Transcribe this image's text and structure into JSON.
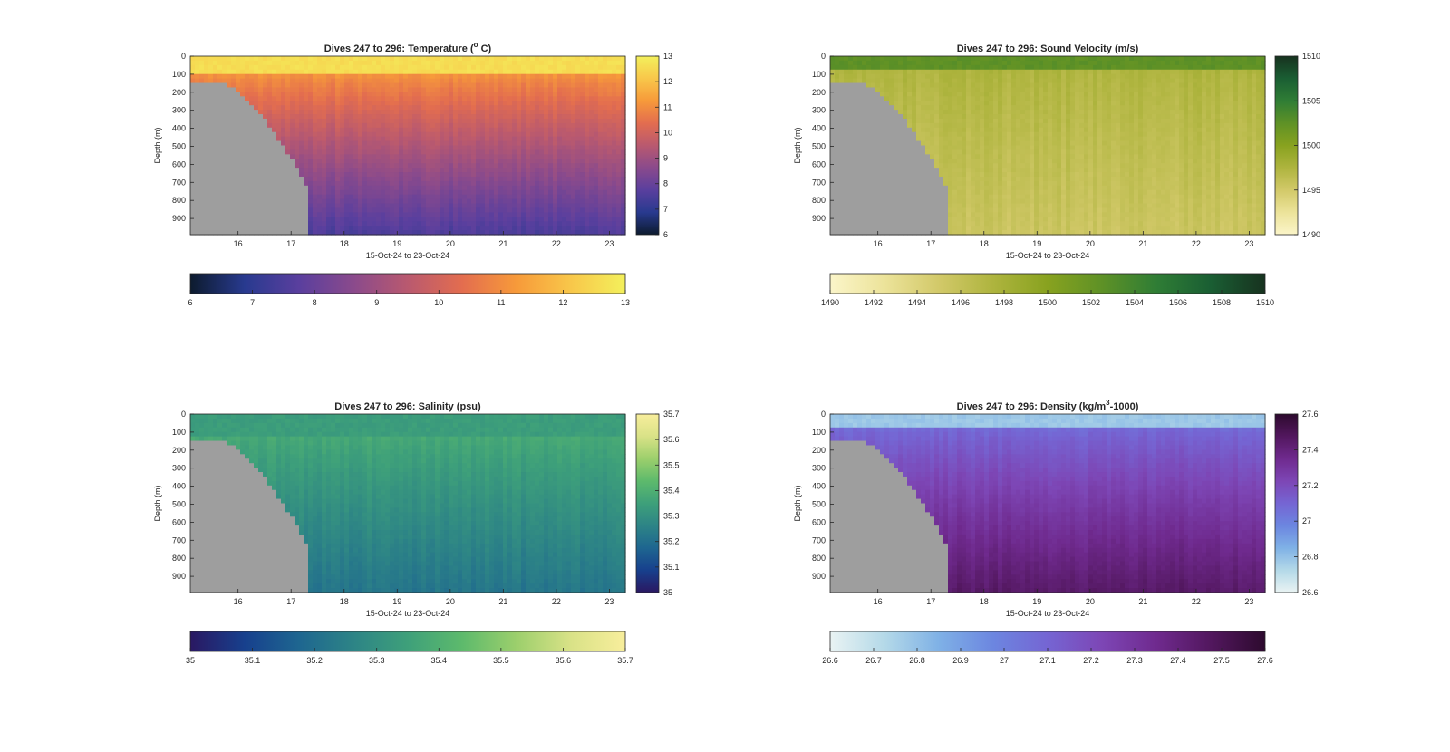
{
  "chart_data": [
    {
      "type": "heatmap",
      "variable": "temperature",
      "title_main": "Dives 247 to 296: Temperature (",
      "title_sup": "o",
      "title_tail": " C)",
      "xlabel": "15-Oct-24 to 23-Oct-24",
      "ylabel": "Depth (m)",
      "xticks": [
        "16",
        "17",
        "18",
        "19",
        "20",
        "21",
        "22",
        "23"
      ],
      "xlim": [
        15.1,
        23.3
      ],
      "yticks": [
        "0",
        "100",
        "200",
        "300",
        "400",
        "500",
        "600",
        "700",
        "800",
        "900"
      ],
      "ylim": [
        0,
        990
      ],
      "clim": [
        6,
        13
      ],
      "colorbar_ticks": [
        "13",
        "12",
        "11",
        "10",
        "9",
        "8",
        "7",
        "6"
      ],
      "hcolorbar_ticks": [
        "6",
        "7",
        "8",
        "9",
        "10",
        "11",
        "12",
        "13"
      ],
      "colormap": [
        "#0d1b2e",
        "#283a8f",
        "#5a3f9e",
        "#8a4a8c",
        "#b9596f",
        "#e36d4f",
        "#f79a3a",
        "#f8c74a",
        "#f3f05c"
      ],
      "profile": {
        "surface": 12.6,
        "mixed_depth": 90,
        "thermo": 11.2,
        "deep": 7.5
      },
      "missing_data_color": "#9e9e9e"
    },
    {
      "type": "heatmap",
      "variable": "sound_velocity",
      "title_main": "Dives 247 to 296: Sound Velocity (m/s)",
      "title_sup": "",
      "title_tail": "",
      "xlabel": "15-Oct-24 to 23-Oct-24",
      "ylabel": "Depth (m)",
      "xticks": [
        "16",
        "17",
        "18",
        "19",
        "20",
        "21",
        "22",
        "23"
      ],
      "xlim": [
        15.1,
        23.3
      ],
      "yticks": [
        "0",
        "100",
        "200",
        "300",
        "400",
        "500",
        "600",
        "700",
        "800",
        "900"
      ],
      "ylim": [
        0,
        990
      ],
      "clim": [
        1490,
        1510
      ],
      "colorbar_ticks": [
        "1510",
        "1505",
        "1500",
        "1495",
        "1490"
      ],
      "hcolorbar_ticks": [
        "1490",
        "1492",
        "1494",
        "1496",
        "1498",
        "1500",
        "1502",
        "1504",
        "1506",
        "1508",
        "1510"
      ],
      "colormap": [
        "#fbf5c9",
        "#ece39a",
        "#d2c969",
        "#aeb43e",
        "#88a21f",
        "#5e9126",
        "#2f7d35",
        "#1a5e33",
        "#17321f"
      ],
      "profile": {
        "surface": 1502.5,
        "mixed_depth": 80,
        "thermo": 1497.5,
        "deep": 1495.5
      },
      "missing_data_color": "#9e9e9e"
    },
    {
      "type": "heatmap",
      "variable": "salinity",
      "title_main": "Dives 247 to 296: Salinity (psu)",
      "title_sup": "",
      "title_tail": "",
      "xlabel": "15-Oct-24 to 23-Oct-24",
      "ylabel": "Depth (m)",
      "xticks": [
        "16",
        "17",
        "18",
        "19",
        "20",
        "21",
        "22",
        "23"
      ],
      "xlim": [
        15.1,
        23.3
      ],
      "yticks": [
        "0",
        "100",
        "200",
        "300",
        "400",
        "500",
        "600",
        "700",
        "800",
        "900"
      ],
      "ylim": [
        0,
        990
      ],
      "clim": [
        35,
        35.7
      ],
      "colorbar_ticks": [
        "35.7",
        "35.6",
        "35.5",
        "35.4",
        "35.3",
        "35.2",
        "35.1",
        "35"
      ],
      "hcolorbar_ticks": [
        "35",
        "35.1",
        "35.2",
        "35.3",
        "35.4",
        "35.5",
        "35.6",
        "35.7"
      ],
      "colormap": [
        "#2a1862",
        "#17408d",
        "#1e6690",
        "#2d8486",
        "#3ea07a",
        "#5dba6c",
        "#9ccf6c",
        "#d9e287",
        "#f8ee9c"
      ],
      "profile": {
        "surface": 35.34,
        "mixed_depth": 120,
        "thermo": 35.38,
        "deep": 35.22
      },
      "missing_data_color": "#9e9e9e"
    },
    {
      "type": "heatmap",
      "variable": "density",
      "title_main": "Dives 247 to 296: Density (kg/m",
      "title_sup": "3",
      "title_tail": "-1000)",
      "xlabel": "15-Oct-24 to 23-Oct-24",
      "ylabel": "Depth (m)",
      "xticks": [
        "16",
        "17",
        "18",
        "19",
        "20",
        "21",
        "22",
        "23"
      ],
      "xlim": [
        15.1,
        23.3
      ],
      "yticks": [
        "0",
        "100",
        "200",
        "300",
        "400",
        "500",
        "600",
        "700",
        "800",
        "900"
      ],
      "ylim": [
        0,
        990
      ],
      "clim": [
        26.6,
        27.6
      ],
      "colorbar_ticks": [
        "27.6",
        "27.4",
        "27.2",
        "27",
        "26.8",
        "26.6"
      ],
      "hcolorbar_ticks": [
        "26.6",
        "26.7",
        "26.8",
        "26.9",
        "27",
        "27.1",
        "27.2",
        "27.3",
        "27.4",
        "27.5",
        "27.6"
      ],
      "colormap": [
        "#e9f3f3",
        "#b4d9e8",
        "#7fb1e6",
        "#6c86e0",
        "#7565d3",
        "#7d46b5",
        "#6f2a8e",
        "#52175e",
        "#2d0a2e"
      ],
      "profile": {
        "surface": 26.78,
        "mixed_depth": 80,
        "thermo": 27.08,
        "deep": 27.45
      },
      "missing_data_color": "#9e9e9e"
    }
  ]
}
